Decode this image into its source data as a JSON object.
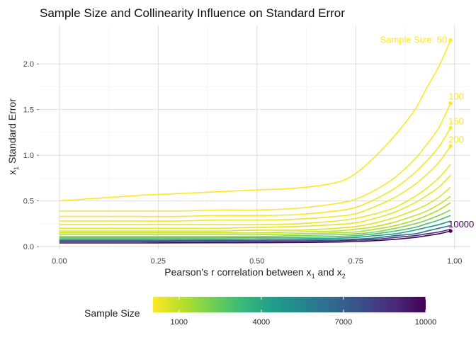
{
  "chart_data": {
    "type": "line",
    "title": "Sample Size and Collinearity Influence on Standard Error",
    "xlabel": {
      "prefix": "Pearson's r correlation between x",
      "sub1": "1",
      "mid": " and x",
      "sub2": "2"
    },
    "ylabel": {
      "prefix": "x",
      "sub": "1",
      "suffix": " Standard Error"
    },
    "xlim": [
      -0.05,
      1.04
    ],
    "ylim": [
      -0.03,
      2.42
    ],
    "x_ticks": [
      {
        "value": 0.0,
        "label": "0.00"
      },
      {
        "value": 0.25,
        "label": "0.25"
      },
      {
        "value": 0.5,
        "label": "0.50"
      },
      {
        "value": 0.75,
        "label": "0.75"
      },
      {
        "value": 1.0,
        "label": "1.00"
      }
    ],
    "y_ticks": [
      {
        "value": 0.0,
        "label": "0.0"
      },
      {
        "value": 0.5,
        "label": "0.5"
      },
      {
        "value": 1.0,
        "label": "1.0"
      },
      {
        "value": 1.5,
        "label": "1.5"
      },
      {
        "value": 2.0,
        "label": "2.0"
      }
    ],
    "x": [
      0.0,
      0.1,
      0.2,
      0.3,
      0.4,
      0.5,
      0.6,
      0.7,
      0.75,
      0.8,
      0.85,
      0.9,
      0.93,
      0.96,
      0.99
    ],
    "series": [
      {
        "name": "Sample Size: 50",
        "sample_size": 50,
        "values": [
          0.5,
          0.53,
          0.56,
          0.58,
          0.6,
          0.62,
          0.64,
          0.7,
          0.8,
          0.99,
          1.22,
          1.5,
          1.74,
          1.97,
          2.26
        ]
      },
      {
        "name": "100",
        "sample_size": 100,
        "values": [
          0.39,
          0.39,
          0.39,
          0.39,
          0.4,
          0.4,
          0.42,
          0.47,
          0.52,
          0.62,
          0.76,
          0.96,
          1.12,
          1.3,
          1.57
        ]
      },
      {
        "name": "150",
        "sample_size": 150,
        "values": [
          0.33,
          0.33,
          0.33,
          0.33,
          0.34,
          0.34,
          0.35,
          0.39,
          0.43,
          0.52,
          0.64,
          0.81,
          0.94,
          1.09,
          1.3
        ]
      },
      {
        "name": "200",
        "sample_size": 200,
        "values": [
          0.28,
          0.28,
          0.28,
          0.28,
          0.29,
          0.29,
          0.3,
          0.33,
          0.36,
          0.44,
          0.54,
          0.68,
          0.79,
          0.92,
          1.1
        ]
      },
      {
        "name": "",
        "sample_size": 300,
        "values": [
          0.24,
          0.24,
          0.24,
          0.24,
          0.24,
          0.24,
          0.25,
          0.28,
          0.31,
          0.36,
          0.43,
          0.55,
          0.64,
          0.75,
          0.9
        ]
      },
      {
        "name": "",
        "sample_size": 400,
        "values": [
          0.2,
          0.2,
          0.2,
          0.2,
          0.2,
          0.21,
          0.22,
          0.24,
          0.26,
          0.31,
          0.38,
          0.48,
          0.56,
          0.65,
          0.78
        ]
      },
      {
        "name": "",
        "sample_size": 600,
        "values": [
          0.17,
          0.17,
          0.17,
          0.17,
          0.17,
          0.18,
          0.18,
          0.2,
          0.22,
          0.26,
          0.32,
          0.4,
          0.46,
          0.54,
          0.65
        ]
      },
      {
        "name": "",
        "sample_size": 900,
        "values": [
          0.15,
          0.15,
          0.15,
          0.15,
          0.15,
          0.15,
          0.16,
          0.17,
          0.19,
          0.22,
          0.27,
          0.34,
          0.39,
          0.46,
          0.55
        ]
      },
      {
        "name": "",
        "sample_size": 1300,
        "values": [
          0.13,
          0.13,
          0.13,
          0.13,
          0.13,
          0.13,
          0.14,
          0.15,
          0.16,
          0.19,
          0.23,
          0.29,
          0.34,
          0.4,
          0.48
        ]
      },
      {
        "name": "",
        "sample_size": 2000,
        "values": [
          0.11,
          0.11,
          0.11,
          0.11,
          0.11,
          0.11,
          0.12,
          0.13,
          0.14,
          0.16,
          0.2,
          0.25,
          0.29,
          0.34,
          0.4
        ]
      },
      {
        "name": "",
        "sample_size": 3000,
        "values": [
          0.095,
          0.095,
          0.095,
          0.095,
          0.095,
          0.097,
          0.1,
          0.11,
          0.12,
          0.14,
          0.17,
          0.21,
          0.25,
          0.29,
          0.34
        ]
      },
      {
        "name": "",
        "sample_size": 4500,
        "values": [
          0.08,
          0.08,
          0.08,
          0.08,
          0.08,
          0.082,
          0.085,
          0.092,
          0.1,
          0.12,
          0.14,
          0.18,
          0.21,
          0.24,
          0.28
        ]
      },
      {
        "name": "",
        "sample_size": 6500,
        "values": [
          0.065,
          0.065,
          0.065,
          0.065,
          0.066,
          0.067,
          0.07,
          0.075,
          0.082,
          0.095,
          0.12,
          0.14,
          0.17,
          0.2,
          0.23
        ]
      },
      {
        "name": "",
        "sample_size": 8500,
        "values": [
          0.055,
          0.055,
          0.055,
          0.055,
          0.056,
          0.057,
          0.059,
          0.064,
          0.07,
          0.08,
          0.1,
          0.12,
          0.14,
          0.16,
          0.19
        ]
      },
      {
        "name": "10000",
        "sample_size": 10000,
        "values": [
          0.04,
          0.04,
          0.04,
          0.041,
          0.042,
          0.043,
          0.045,
          0.05,
          0.055,
          0.065,
          0.08,
          0.1,
          0.12,
          0.14,
          0.17
        ]
      }
    ],
    "legend": {
      "title": "Sample Size",
      "position": "bottom",
      "min": 50,
      "max": 10000,
      "ticks": [
        {
          "value": 1000,
          "label": "1000"
        },
        {
          "value": 4000,
          "label": "4000"
        },
        {
          "value": 7000,
          "label": "7000"
        },
        {
          "value": 10000,
          "label": "10000"
        }
      ]
    },
    "palette": [
      "#FDE725",
      "#B5DE2B",
      "#6ECE58",
      "#35B779",
      "#1F9E89",
      "#26828E",
      "#31688E",
      "#3E4A89",
      "#482878",
      "#440154"
    ]
  }
}
